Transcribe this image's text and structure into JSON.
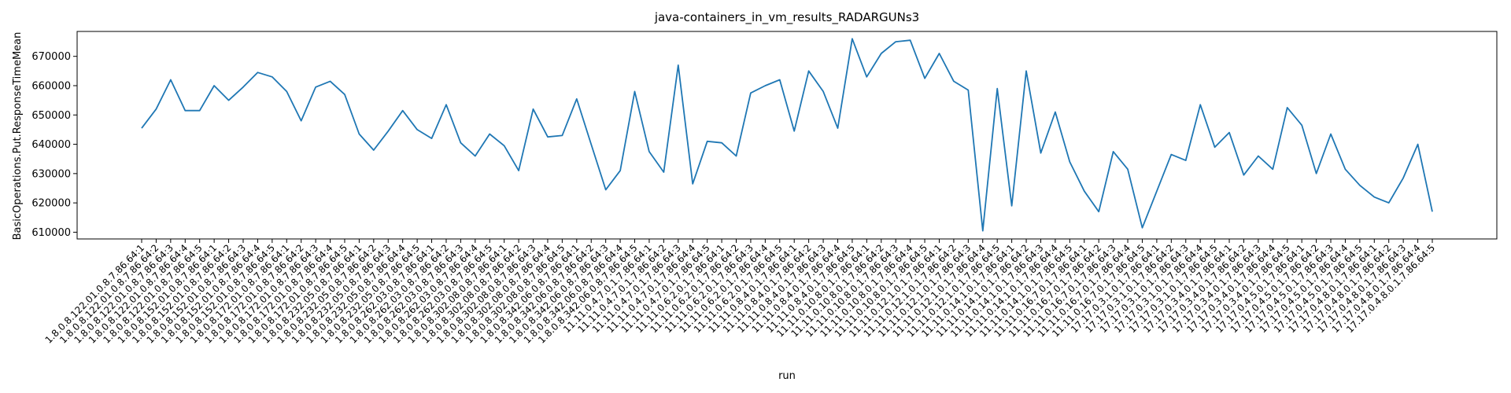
{
  "chart_data": {
    "type": "line",
    "title": "java-containers_in_vm_results_RADARGUNs3",
    "x_label": "run",
    "y_label": "BasicOperations.Put.ResponseTimeMean",
    "categories": [
      "1.8.0.8.122.01.0.8.7.86.64:1",
      "1.8.0.8.122.01.0.8.7.86.64:2",
      "1.8.0.8.122.01.0.8.7.86.64:3",
      "1.8.0.8.122.01.0.8.7.86.64:4",
      "1.8.0.8.122.01.0.8.7.86.64:5",
      "1.8.0.8.152.01.0.8.7.86.64:1",
      "1.8.0.8.152.01.0.8.7.86.64:2",
      "1.8.0.8.152.01.0.8.7.86.64:3",
      "1.8.0.8.152.01.0.8.7.86.64:4",
      "1.8.0.8.152.01.0.8.7.86.64:5",
      "1.8.0.8.172.01.0.8.7.86.64:1",
      "1.8.0.8.172.01.0.8.7.86.64:2",
      "1.8.0.8.172.01.0.8.7.86.64:3",
      "1.8.0.8.172.01.0.8.7.86.64:4",
      "1.8.0.8.172.01.0.8.7.86.64:5",
      "1.8.0.8.232.05.0.8.7.86.64:1",
      "1.8.0.8.232.05.0.8.7.86.64:2",
      "1.8.0.8.232.05.0.8.7.86.64:3",
      "1.8.0.8.232.05.0.8.7.86.64:4",
      "1.8.0.8.232.05.0.8.7.86.64:5",
      "1.8.0.8.262.03.0.8.7.86.64:1",
      "1.8.0.8.262.03.0.8.7.86.64:2",
      "1.8.0.8.262.03.0.8.7.86.64:3",
      "1.8.0.8.262.03.0.8.7.86.64:4",
      "1.8.0.8.262.03.0.8.7.86.64:5",
      "1.8.0.8.302.08.0.8.7.86.64:1",
      "1.8.0.8.302.08.0.8.7.86.64:2",
      "1.8.0.8.302.08.0.8.7.86.64:3",
      "1.8.0.8.302.08.0.8.7.86.64:4",
      "1.8.0.8.302.08.0.8.7.86.64:5",
      "1.8.0.8.342.06.0.8.7.86.64:1",
      "1.8.0.8.342.06.0.8.7.86.64:2",
      "1.8.0.8.342.06.0.8.7.86.64:3",
      "1.8.0.8.342.06.0.8.7.86.64:4",
      "1.8.0.8.342.06.0.8.7.86.64:5",
      "11.11.0.4.7.0.1.7.86.64:1",
      "11.11.0.4.7.0.1.7.86.64:2",
      "11.11.0.4.7.0.1.7.86.64:3",
      "11.11.0.4.7.0.1.7.86.64:4",
      "11.11.0.4.7.0.1.7.86.64:5",
      "11.11.0.6.2.0.1.7.86.64:1",
      "11.11.0.6.2.0.1.7.86.64:2",
      "11.11.0.6.2.0.1.7.86.64:3",
      "11.11.0.6.2.0.1.7.86.64:4",
      "11.11.0.6.2.0.1.7.86.64:5",
      "11.11.0.8.4.0.1.7.86.64:1",
      "11.11.0.8.4.0.1.7.86.64:2",
      "11.11.0.8.4.0.1.7.86.64:3",
      "11.11.0.8.4.0.1.7.86.64:4",
      "11.11.0.8.4.0.1.7.86.64:5",
      "11.11.0.10.8.0.1.7.86.64:1",
      "11.11.0.10.8.0.1.7.86.64:2",
      "11.11.0.10.8.0.1.7.86.64:3",
      "11.11.0.10.8.0.1.7.86.64:4",
      "11.11.0.10.8.0.1.7.86.64:5",
      "11.11.0.12.1.0.1.7.86.64:1",
      "11.11.0.12.1.0.1.7.86.64:2",
      "11.11.0.12.1.0.1.7.86.64:3",
      "11.11.0.12.1.0.1.7.86.64:4",
      "11.11.0.12.1.0.1.7.86.64:5",
      "11.11.0.14.1.0.1.7.86.64:1",
      "11.11.0.14.1.0.1.7.86.64:2",
      "11.11.0.14.1.0.1.7.86.64:3",
      "11.11.0.14.1.0.1.7.86.64:4",
      "11.11.0.14.1.0.1.7.86.64:5",
      "11.11.0.16.7.0.1.7.86.64:1",
      "11.11.0.16.7.0.1.7.86.64:2",
      "11.11.0.16.7.0.1.7.86.64:3",
      "11.11.0.16.7.0.1.7.86.64:4",
      "11.11.0.16.7.0.1.7.86.64:5",
      "17.17.0.3.1.0.1.7.86.64:1",
      "17.17.0.3.1.0.1.7.86.64:2",
      "17.17.0.3.1.0.1.7.86.64:3",
      "17.17.0.3.1.0.1.7.86.64:4",
      "17.17.0.3.1.0.1.7.86.64:5",
      "17.17.0.3.4.0.1.7.86.64:1",
      "17.17.0.3.4.0.1.7.86.64:2",
      "17.17.0.3.4.0.1.7.86.64:3",
      "17.17.0.3.4.0.1.7.86.64:4",
      "17.17.0.3.4.0.1.7.86.64:5",
      "17.17.0.4.5.0.1.7.86.64:1",
      "17.17.0.4.5.0.1.7.86.64:2",
      "17.17.0.4.5.0.1.7.86.64:3",
      "17.17.0.4.5.0.1.7.86.64:4",
      "17.17.0.4.5.0.1.7.86.64:5",
      "17.17.0.4.8.0.1.7.86.64:1",
      "17.17.0.4.8.0.1.7.86.64:2",
      "17.17.0.4.8.0.1.7.86.64:3",
      "17.17.0.4.8.0.1.7.86.64:4",
      "17.17.0.4.8.0.1.7.86.64:5"
    ],
    "series": [
      {
        "name": "BasicOperations.Put.ResponseTimeMean",
        "color": "#1f77b4",
        "values": [
          645500,
          652000,
          662000,
          651500,
          651500,
          660000,
          655000,
          659500,
          664500,
          663000,
          658000,
          648000,
          659500,
          661500,
          657000,
          643500,
          638000,
          644500,
          651500,
          645000,
          642000,
          653500,
          640500,
          636000,
          643500,
          639500,
          631000,
          652000,
          642500,
          643000,
          655500,
          640000,
          624500,
          631000,
          658000,
          637500,
          630500,
          667000,
          626500,
          641000,
          640500,
          636000,
          657500,
          660000,
          662000,
          644500,
          665000,
          658000,
          645500,
          676000,
          663000,
          671000,
          675000,
          675500,
          662500,
          671000,
          661500,
          658500,
          610500,
          659000,
          619000,
          665000,
          637000,
          651000,
          634000,
          624000,
          617000,
          637500,
          631500,
          611500,
          624000,
          636500,
          634500,
          653500,
          639000,
          644000,
          629500,
          636000,
          631500,
          652500,
          646500,
          630000,
          643500,
          631500,
          626000,
          622000,
          620000,
          628500,
          640000,
          617000
        ]
      }
    ],
    "ylim": [
      607700,
      678500
    ],
    "yticks": [
      610000,
      620000,
      630000,
      640000,
      650000,
      660000,
      670000
    ]
  }
}
